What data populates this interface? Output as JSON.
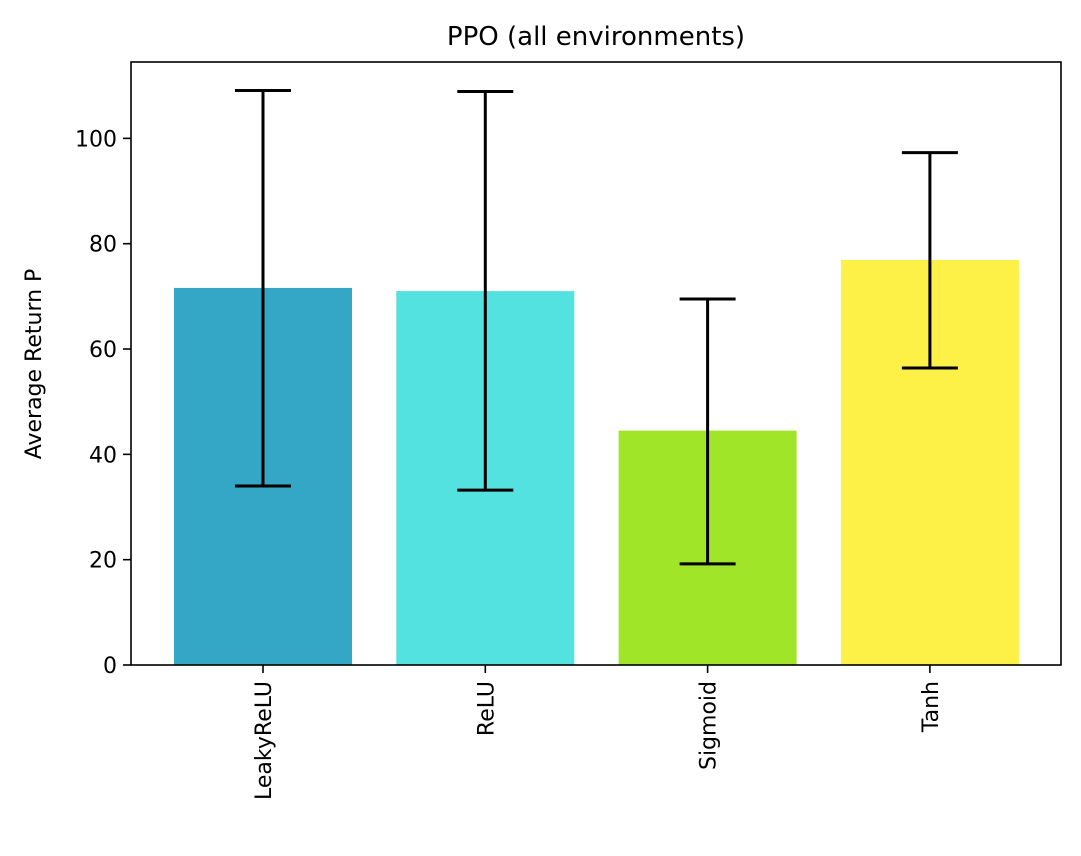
{
  "chart_data": {
    "type": "bar",
    "title": "PPO (all environments)",
    "xlabel": "",
    "ylabel": "Average Return P",
    "categories": [
      "LeakyReLU",
      "ReLU",
      "Sigmoid",
      "Tanh"
    ],
    "values": [
      71.6,
      71.0,
      44.5,
      76.9
    ],
    "error_low": [
      34.0,
      33.2,
      19.2,
      56.4
    ],
    "error_high": [
      109.1,
      108.9,
      69.5,
      97.3
    ],
    "bar_colors": [
      "#35a7c6",
      "#53e2df",
      "#a1e528",
      "#fdf046"
    ],
    "ylim": [
      0,
      114.5
    ],
    "yticks": [
      0,
      20,
      40,
      60,
      80,
      100
    ],
    "grid": false,
    "legend": "none"
  }
}
